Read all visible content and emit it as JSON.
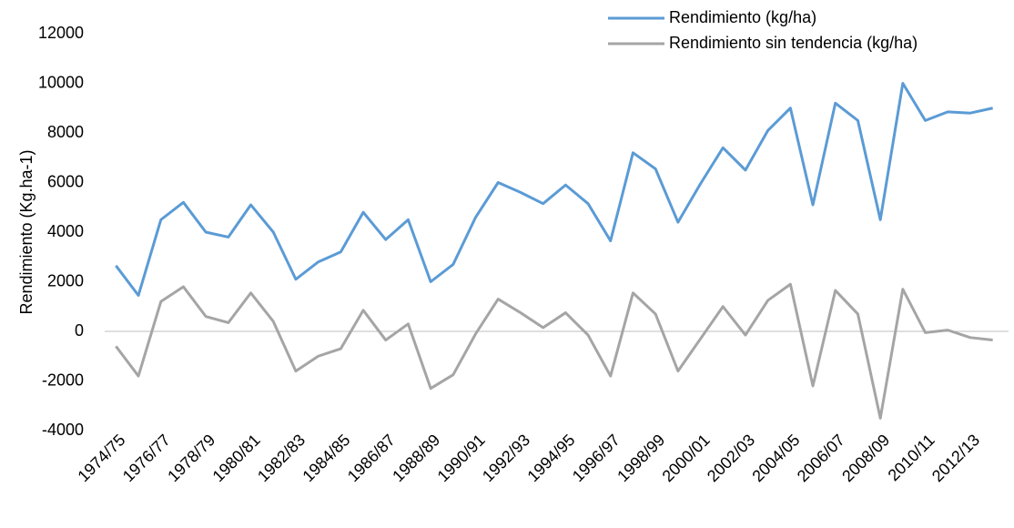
{
  "chart_data": {
    "type": "line",
    "y_axis_label": "Rendimiento (Kg.ha-1)",
    "categories": [
      "1974/75",
      null,
      "1976/77",
      null,
      "1978/79",
      null,
      "1980/81",
      null,
      "1982/83",
      null,
      "1984/85",
      null,
      "1986/87",
      null,
      "1988/89",
      null,
      "1990/91",
      null,
      "1992/93",
      null,
      "1994/95",
      null,
      "1996/97",
      null,
      "1998/99",
      null,
      "2000/01",
      null,
      "2002/03",
      null,
      "2004/05",
      null,
      "2006/07",
      null,
      "2008/09",
      null,
      "2010/11",
      null,
      "2012/13",
      null
    ],
    "series": [
      {
        "name": "Rendimiento (kg/ha)",
        "color": "#5b9bd5",
        "values": [
          2650,
          1450,
          4500,
          5200,
          4000,
          3800,
          5100,
          4000,
          2100,
          2800,
          3200,
          4800,
          3700,
          4500,
          2000,
          2700,
          4600,
          6000,
          5600,
          5150,
          5900,
          5150,
          3650,
          7200,
          6550,
          4400,
          5950,
          7400,
          6500,
          8100,
          9000,
          5100,
          9200,
          8500,
          4500,
          10000,
          8500,
          8850,
          8800,
          9000
        ]
      },
      {
        "name": "Rendimiento sin tendencia (kg/ha)",
        "color": "#a5a5a5",
        "values": [
          -600,
          -1800,
          1200,
          1800,
          600,
          350,
          1550,
          400,
          -1600,
          -1000,
          -700,
          850,
          -350,
          300,
          -2300,
          -1750,
          -100,
          1300,
          750,
          150,
          750,
          -150,
          -1800,
          1550,
          700,
          -1600,
          -300,
          1000,
          -150,
          1250,
          1900,
          -2200,
          1650,
          700,
          -3500,
          1700,
          -50,
          50,
          -250,
          -350
        ]
      }
    ],
    "ylim": [
      -4000,
      12000
    ],
    "yticks": [
      -4000,
      -2000,
      0,
      2000,
      4000,
      6000,
      8000,
      10000,
      12000
    ],
    "legend": "upper right"
  }
}
